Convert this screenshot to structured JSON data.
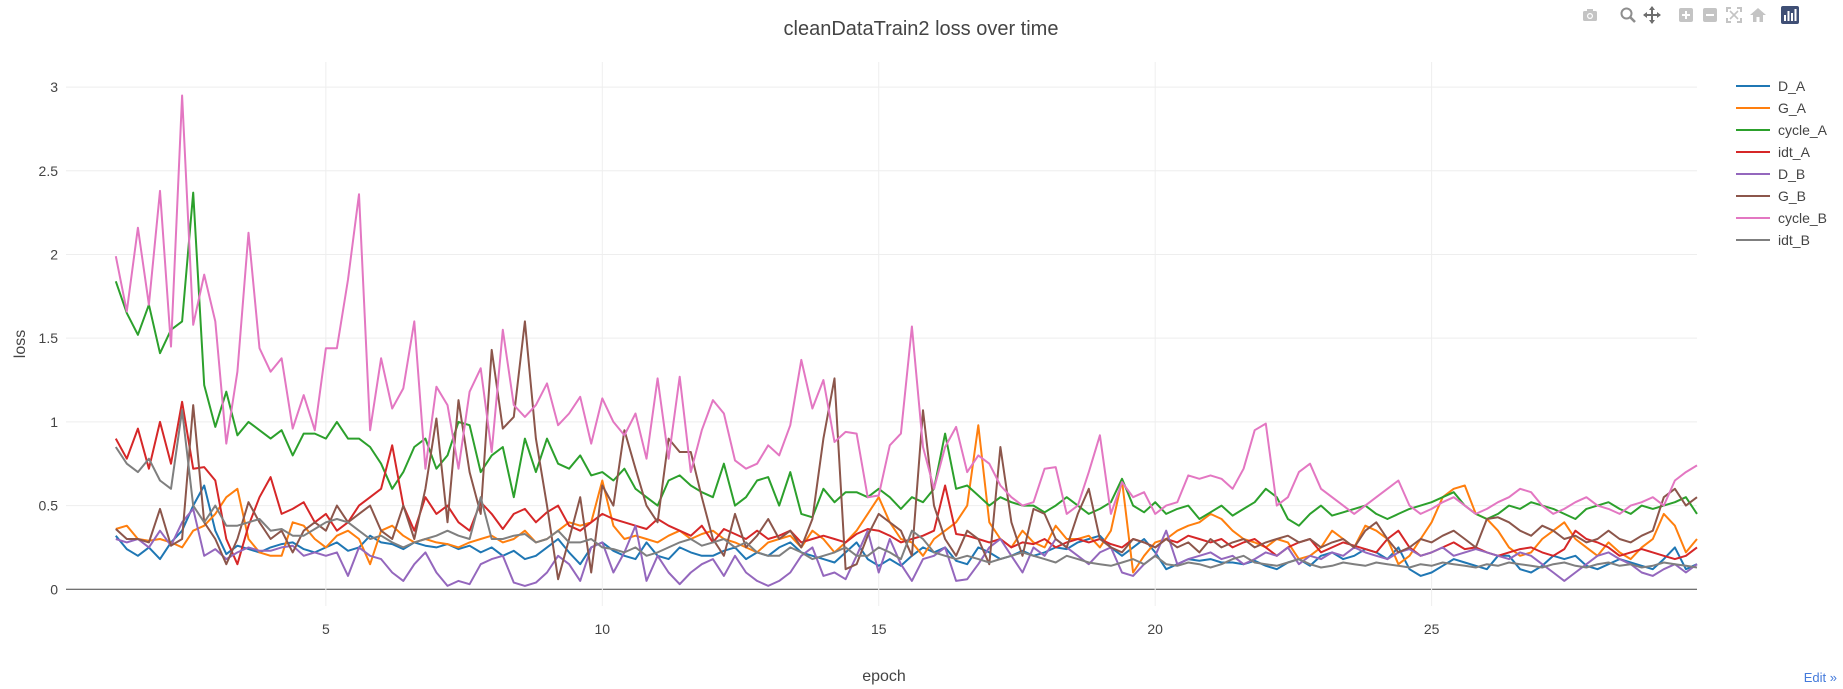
{
  "toolbar": {
    "buttons": [
      {
        "name": "camera-icon"
      },
      {
        "name": "zoom-icon"
      },
      {
        "name": "pan-icon"
      },
      {
        "name": "zoom-in-icon"
      },
      {
        "name": "zoom-out-icon"
      },
      {
        "name": "autoscale-icon"
      },
      {
        "name": "home-icon"
      },
      {
        "name": "plotly-logo-icon"
      }
    ]
  },
  "edit_link": "Edit »",
  "chart_data": {
    "type": "line",
    "title": "cleanDataTrain2 loss over time",
    "xlabel": "epoch",
    "ylabel": "loss",
    "xlim": [
      0.3,
      29.8
    ],
    "ylim": [
      -0.1,
      3.15
    ],
    "xticks": [
      5,
      10,
      15,
      20,
      25
    ],
    "yticks": [
      0,
      0.5,
      1,
      1.5,
      2,
      2.5,
      3
    ],
    "ytick_labels": [
      "0",
      "0.5",
      "1",
      "1.5",
      "2",
      "2.5",
      "3"
    ],
    "grid": true,
    "legend_position": "top-right",
    "x": {
      "start": 1.2,
      "step": 0.2,
      "count": 144
    },
    "series": [
      {
        "name": "D_A",
        "color": "#1f77b4",
        "values": [
          0.32,
          0.24,
          0.2,
          0.25,
          0.18,
          0.28,
          0.35,
          0.5,
          0.62,
          0.35,
          0.21,
          0.26,
          0.24,
          0.22,
          0.25,
          0.27,
          0.28,
          0.24,
          0.22,
          0.25,
          0.28,
          0.23,
          0.25,
          0.32,
          0.28,
          0.27,
          0.24,
          0.28,
          0.26,
          0.25,
          0.27,
          0.24,
          0.26,
          0.22,
          0.25,
          0.2,
          0.23,
          0.18,
          0.2,
          0.25,
          0.3,
          0.22,
          0.15,
          0.25,
          0.28,
          0.23,
          0.2,
          0.18,
          0.28,
          0.2,
          0.18,
          0.25,
          0.22,
          0.2,
          0.2,
          0.23,
          0.25,
          0.18,
          0.22,
          0.2,
          0.25,
          0.28,
          0.22,
          0.2,
          0.18,
          0.16,
          0.22,
          0.28,
          0.18,
          0.14,
          0.18,
          0.14,
          0.2,
          0.25,
          0.22,
          0.25,
          0.17,
          0.15,
          0.25,
          0.22,
          0.18,
          0.2,
          0.23,
          0.2,
          0.22,
          0.25,
          0.24,
          0.28,
          0.3,
          0.32,
          0.25,
          0.2,
          0.25,
          0.3,
          0.22,
          0.12,
          0.15,
          0.18,
          0.17,
          0.18,
          0.16,
          0.16,
          0.15,
          0.17,
          0.14,
          0.12,
          0.16,
          0.18,
          0.14,
          0.2,
          0.22,
          0.18,
          0.2,
          0.24,
          0.22,
          0.18,
          0.25,
          0.12,
          0.08,
          0.1,
          0.14,
          0.18,
          0.16,
          0.14,
          0.12,
          0.2,
          0.2,
          0.12,
          0.1,
          0.14,
          0.2,
          0.18,
          0.2,
          0.14,
          0.12,
          0.15,
          0.18,
          0.16,
          0.14,
          0.12,
          0.18,
          0.25,
          0.12,
          0.15
        ]
      },
      {
        "name": "G_A",
        "color": "#ff7f0e",
        "values": [
          0.36,
          0.38,
          0.3,
          0.29,
          0.3,
          0.28,
          0.25,
          0.35,
          0.38,
          0.45,
          0.55,
          0.6,
          0.3,
          0.22,
          0.2,
          0.2,
          0.4,
          0.38,
          0.3,
          0.25,
          0.32,
          0.35,
          0.3,
          0.15,
          0.35,
          0.38,
          0.32,
          0.28,
          0.3,
          0.28,
          0.27,
          0.25,
          0.28,
          0.3,
          0.32,
          0.28,
          0.3,
          0.35,
          0.28,
          0.3,
          0.35,
          0.4,
          0.38,
          0.4,
          0.65,
          0.38,
          0.3,
          0.32,
          0.3,
          0.28,
          0.32,
          0.35,
          0.3,
          0.33,
          0.35,
          0.3,
          0.28,
          0.25,
          0.22,
          0.28,
          0.3,
          0.32,
          0.25,
          0.35,
          0.3,
          0.22,
          0.28,
          0.35,
          0.45,
          0.55,
          0.4,
          0.3,
          0.28,
          0.2,
          0.3,
          0.35,
          0.4,
          0.5,
          0.98,
          0.4,
          0.3,
          0.25,
          0.35,
          0.28,
          0.25,
          0.38,
          0.3,
          0.3,
          0.32,
          0.25,
          0.35,
          0.65,
          0.1,
          0.2,
          0.28,
          0.3,
          0.35,
          0.38,
          0.4,
          0.45,
          0.42,
          0.35,
          0.3,
          0.28,
          0.25,
          0.3,
          0.28,
          0.18,
          0.2,
          0.25,
          0.35,
          0.3,
          0.25,
          0.38,
          0.35,
          0.3,
          0.15,
          0.2,
          0.3,
          0.4,
          0.55,
          0.6,
          0.62,
          0.45,
          0.42,
          0.35,
          0.25,
          0.2,
          0.22,
          0.3,
          0.35,
          0.4,
          0.3,
          0.25,
          0.2,
          0.28,
          0.22,
          0.18,
          0.25,
          0.3,
          0.45,
          0.38,
          0.22,
          0.3
        ]
      },
      {
        "name": "cycle_A",
        "color": "#2ca02c",
        "values": [
          1.84,
          1.65,
          1.52,
          1.7,
          1.41,
          1.55,
          1.6,
          2.37,
          1.22,
          0.97,
          1.18,
          0.92,
          1.0,
          0.95,
          0.9,
          0.95,
          0.8,
          0.93,
          0.93,
          0.9,
          1.0,
          0.9,
          0.9,
          0.85,
          0.75,
          0.6,
          0.7,
          0.85,
          0.9,
          0.72,
          0.8,
          1.0,
          0.98,
          0.7,
          0.8,
          0.85,
          0.55,
          0.9,
          0.7,
          0.9,
          0.75,
          0.72,
          0.8,
          0.68,
          0.7,
          0.65,
          0.72,
          0.6,
          0.55,
          0.5,
          0.65,
          0.68,
          0.62,
          0.58,
          0.55,
          0.75,
          0.5,
          0.55,
          0.65,
          0.67,
          0.5,
          0.7,
          0.45,
          0.43,
          0.6,
          0.52,
          0.58,
          0.58,
          0.55,
          0.6,
          0.55,
          0.48,
          0.55,
          0.52,
          0.6,
          0.93,
          0.6,
          0.62,
          0.56,
          0.5,
          0.55,
          0.52,
          0.5,
          0.5,
          0.46,
          0.5,
          0.55,
          0.5,
          0.45,
          0.48,
          0.52,
          0.66,
          0.5,
          0.46,
          0.52,
          0.45,
          0.48,
          0.5,
          0.42,
          0.46,
          0.5,
          0.44,
          0.48,
          0.52,
          0.6,
          0.55,
          0.42,
          0.38,
          0.45,
          0.5,
          0.44,
          0.46,
          0.48,
          0.5,
          0.45,
          0.42,
          0.45,
          0.48,
          0.5,
          0.52,
          0.55,
          0.58,
          0.5,
          0.45,
          0.42,
          0.45,
          0.5,
          0.48,
          0.52,
          0.5,
          0.48,
          0.45,
          0.42,
          0.48,
          0.5,
          0.52,
          0.48,
          0.45,
          0.5,
          0.48,
          0.5,
          0.52,
          0.55,
          0.45
        ]
      },
      {
        "name": "idt_A",
        "color": "#d62728",
        "values": [
          0.9,
          0.78,
          0.96,
          0.72,
          1.0,
          0.75,
          1.12,
          0.72,
          0.73,
          0.65,
          0.3,
          0.15,
          0.38,
          0.55,
          0.67,
          0.45,
          0.48,
          0.52,
          0.4,
          0.45,
          0.35,
          0.4,
          0.5,
          0.55,
          0.6,
          0.86,
          0.5,
          0.35,
          0.55,
          0.45,
          0.5,
          0.4,
          0.35,
          0.52,
          0.45,
          0.36,
          0.45,
          0.48,
          0.4,
          0.46,
          0.5,
          0.38,
          0.35,
          0.4,
          0.45,
          0.42,
          0.4,
          0.38,
          0.36,
          0.42,
          0.38,
          0.35,
          0.32,
          0.38,
          0.28,
          0.36,
          0.33,
          0.3,
          0.35,
          0.3,
          0.32,
          0.35,
          0.28,
          0.3,
          0.32,
          0.3,
          0.28,
          0.33,
          0.36,
          0.35,
          0.32,
          0.28,
          0.3,
          0.32,
          0.35,
          0.62,
          0.33,
          0.32,
          0.3,
          0.28,
          0.3,
          0.25,
          0.28,
          0.27,
          0.3,
          0.25,
          0.28,
          0.3,
          0.28,
          0.3,
          0.27,
          0.25,
          0.3,
          0.28,
          0.25,
          0.3,
          0.28,
          0.32,
          0.3,
          0.28,
          0.3,
          0.25,
          0.28,
          0.3,
          0.25,
          0.2,
          0.25,
          0.28,
          0.3,
          0.22,
          0.25,
          0.28,
          0.26,
          0.24,
          0.22,
          0.3,
          0.35,
          0.25,
          0.2,
          0.22,
          0.25,
          0.28,
          0.24,
          0.25,
          0.22,
          0.2,
          0.22,
          0.24,
          0.25,
          0.22,
          0.2,
          0.24,
          0.35,
          0.3,
          0.28,
          0.25,
          0.2,
          0.22,
          0.24,
          0.22,
          0.2,
          0.18,
          0.2,
          0.25
        ]
      },
      {
        "name": "D_B",
        "color": "#9467bd",
        "values": [
          0.3,
          0.28,
          0.3,
          0.25,
          0.35,
          0.26,
          0.4,
          0.48,
          0.2,
          0.24,
          0.18,
          0.22,
          0.25,
          0.23,
          0.23,
          0.25,
          0.26,
          0.2,
          0.22,
          0.2,
          0.22,
          0.08,
          0.25,
          0.2,
          0.18,
          0.1,
          0.05,
          0.15,
          0.22,
          0.1,
          0.02,
          0.05,
          0.03,
          0.15,
          0.18,
          0.2,
          0.04,
          0.02,
          0.04,
          0.1,
          0.2,
          0.15,
          0.05,
          0.25,
          0.28,
          0.1,
          0.22,
          0.38,
          0.05,
          0.2,
          0.1,
          0.03,
          0.1,
          0.15,
          0.18,
          0.08,
          0.2,
          0.1,
          0.05,
          0.02,
          0.05,
          0.1,
          0.2,
          0.25,
          0.08,
          0.1,
          0.06,
          0.2,
          0.35,
          0.1,
          0.3,
          0.15,
          0.05,
          0.18,
          0.2,
          0.25,
          0.05,
          0.06,
          0.15,
          0.25,
          0.3,
          0.2,
          0.1,
          0.25,
          0.2,
          0.3,
          0.25,
          0.2,
          0.15,
          0.22,
          0.25,
          0.1,
          0.08,
          0.15,
          0.2,
          0.35,
          0.15,
          0.18,
          0.2,
          0.22,
          0.18,
          0.2,
          0.15,
          0.18,
          0.22,
          0.2,
          0.25,
          0.15,
          0.2,
          0.18,
          0.22,
          0.2,
          0.25,
          0.22,
          0.2,
          0.18,
          0.22,
          0.24,
          0.2,
          0.22,
          0.25,
          0.2,
          0.22,
          0.24,
          0.22,
          0.2,
          0.18,
          0.22,
          0.2,
          0.15,
          0.1,
          0.05,
          0.1,
          0.15,
          0.2,
          0.22,
          0.18,
          0.15,
          0.1,
          0.08,
          0.12,
          0.15,
          0.1,
          0.15
        ]
      },
      {
        "name": "G_B",
        "color": "#8c564b",
        "values": [
          0.36,
          0.3,
          0.3,
          0.28,
          0.48,
          0.26,
          0.3,
          1.1,
          0.4,
          0.3,
          0.15,
          0.3,
          0.52,
          0.4,
          0.3,
          0.35,
          0.22,
          0.35,
          0.4,
          0.35,
          0.5,
          0.4,
          0.45,
          0.5,
          0.35,
          0.3,
          0.5,
          0.3,
          0.6,
          1.02,
          0.4,
          1.13,
          0.7,
          0.45,
          1.43,
          0.96,
          1.03,
          1.6,
          0.9,
          0.5,
          0.06,
          0.3,
          0.55,
          0.1,
          0.62,
          0.5,
          0.95,
          0.72,
          0.5,
          0.4,
          0.9,
          0.82,
          0.82,
          0.55,
          0.3,
          0.2,
          0.45,
          0.25,
          0.32,
          0.42,
          0.3,
          0.35,
          0.25,
          0.42,
          0.9,
          1.26,
          0.12,
          0.15,
          0.32,
          0.45,
          0.4,
          0.35,
          0.2,
          1.07,
          0.5,
          0.3,
          0.2,
          0.35,
          0.3,
          0.15,
          0.85,
          0.4,
          0.2,
          0.48,
          0.45,
          0.3,
          0.25,
          0.45,
          0.6,
          0.3,
          0.25,
          0.22,
          0.3,
          0.28,
          0.25,
          0.3,
          0.25,
          0.28,
          0.22,
          0.3,
          0.25,
          0.28,
          0.3,
          0.25,
          0.28,
          0.3,
          0.32,
          0.28,
          0.3,
          0.25,
          0.28,
          0.3,
          0.25,
          0.35,
          0.4,
          0.3,
          0.22,
          0.25,
          0.3,
          0.28,
          0.32,
          0.35,
          0.3,
          0.25,
          0.42,
          0.43,
          0.4,
          0.35,
          0.32,
          0.38,
          0.35,
          0.3,
          0.32,
          0.28,
          0.3,
          0.35,
          0.3,
          0.28,
          0.32,
          0.35,
          0.55,
          0.6,
          0.5,
          0.55
        ]
      },
      {
        "name": "cycle_B",
        "color": "#e377c2",
        "values": [
          1.99,
          1.66,
          2.16,
          1.7,
          2.38,
          1.45,
          2.95,
          1.58,
          1.88,
          1.6,
          0.87,
          1.3,
          2.13,
          1.44,
          1.3,
          1.38,
          0.96,
          1.16,
          0.95,
          1.44,
          1.44,
          1.85,
          2.36,
          0.95,
          1.38,
          1.08,
          1.2,
          1.6,
          0.72,
          1.21,
          1.1,
          0.72,
          1.18,
          1.32,
          0.82,
          1.55,
          1.1,
          1.03,
          1.1,
          1.23,
          0.98,
          1.05,
          1.15,
          0.87,
          1.14,
          1.0,
          0.92,
          1.05,
          0.78,
          1.26,
          0.78,
          1.27,
          0.7,
          0.95,
          1.13,
          1.05,
          0.77,
          0.72,
          0.75,
          0.86,
          0.8,
          0.98,
          1.37,
          1.08,
          1.25,
          0.88,
          0.94,
          0.93,
          0.55,
          0.56,
          0.86,
          0.93,
          1.57,
          0.85,
          0.6,
          0.85,
          0.97,
          0.7,
          0.8,
          0.75,
          0.62,
          0.55,
          0.5,
          0.52,
          0.72,
          0.73,
          0.45,
          0.5,
          0.7,
          0.92,
          0.45,
          0.64,
          0.55,
          0.58,
          0.45,
          0.5,
          0.52,
          0.68,
          0.66,
          0.68,
          0.66,
          0.6,
          0.72,
          0.95,
          0.99,
          0.5,
          0.55,
          0.7,
          0.75,
          0.6,
          0.55,
          0.5,
          0.45,
          0.5,
          0.55,
          0.6,
          0.65,
          0.5,
          0.45,
          0.48,
          0.52,
          0.55,
          0.5,
          0.45,
          0.48,
          0.52,
          0.55,
          0.6,
          0.58,
          0.5,
          0.45,
          0.48,
          0.52,
          0.55,
          0.5,
          0.48,
          0.45,
          0.5,
          0.52,
          0.55,
          0.5,
          0.65,
          0.7,
          0.74
        ]
      },
      {
        "name": "idt_B",
        "color": "#7f7f7f",
        "values": [
          0.85,
          0.75,
          0.7,
          0.78,
          0.65,
          0.6,
          1.07,
          0.5,
          0.4,
          0.5,
          0.38,
          0.38,
          0.4,
          0.42,
          0.35,
          0.36,
          0.32,
          0.32,
          0.36,
          0.4,
          0.42,
          0.4,
          0.35,
          0.3,
          0.32,
          0.28,
          0.25,
          0.28,
          0.3,
          0.32,
          0.35,
          0.32,
          0.3,
          0.55,
          0.3,
          0.3,
          0.32,
          0.33,
          0.28,
          0.3,
          0.35,
          0.28,
          0.28,
          0.3,
          0.25,
          0.24,
          0.22,
          0.25,
          0.2,
          0.22,
          0.25,
          0.28,
          0.3,
          0.26,
          0.28,
          0.3,
          0.25,
          0.28,
          0.22,
          0.2,
          0.2,
          0.25,
          0.22,
          0.18,
          0.2,
          0.22,
          0.25,
          0.2,
          0.2,
          0.25,
          0.22,
          0.18,
          0.35,
          0.3,
          0.22,
          0.2,
          0.18,
          0.2,
          0.18,
          0.16,
          0.18,
          0.2,
          0.22,
          0.2,
          0.18,
          0.16,
          0.2,
          0.18,
          0.16,
          0.15,
          0.14,
          0.16,
          0.18,
          0.15,
          0.2,
          0.15,
          0.14,
          0.16,
          0.15,
          0.13,
          0.15,
          0.18,
          0.2,
          0.16,
          0.15,
          0.14,
          0.16,
          0.18,
          0.15,
          0.13,
          0.14,
          0.16,
          0.15,
          0.14,
          0.16,
          0.15,
          0.14,
          0.13,
          0.15,
          0.14,
          0.16,
          0.15,
          0.14,
          0.13,
          0.15,
          0.14,
          0.16,
          0.15,
          0.14,
          0.13,
          0.15,
          0.16,
          0.14,
          0.13,
          0.15,
          0.16,
          0.14,
          0.15,
          0.13,
          0.14,
          0.16,
          0.15,
          0.14,
          0.13
        ]
      }
    ]
  }
}
